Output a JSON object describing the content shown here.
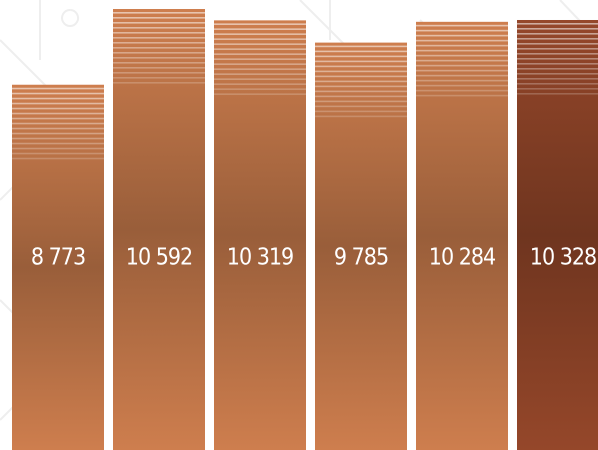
{
  "chart_data": {
    "type": "bar",
    "values": [
      8773,
      10592,
      10319,
      9785,
      10284,
      10328
    ],
    "value_labels": [
      "8 773",
      "10 592",
      "10 319",
      "9 785",
      "10 284",
      "10 328"
    ],
    "colors": [
      "#c4784a",
      "#c4784a",
      "#c4784a",
      "#c4784a",
      "#c4784a",
      "#8e4428"
    ]
  }
}
